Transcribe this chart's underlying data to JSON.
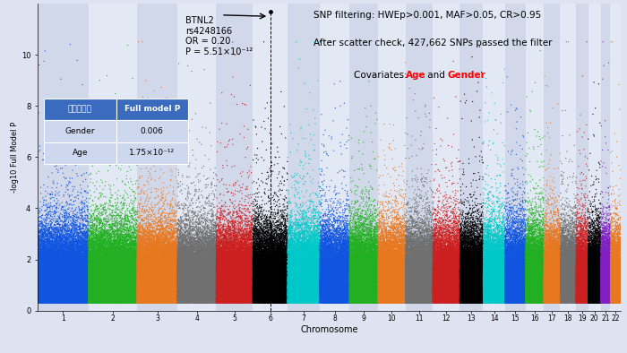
{
  "xlabel": "Chromosome",
  "ylabel": "-log10 Full Model P",
  "ylim": [
    0,
    12
  ],
  "yticks": [
    0,
    2,
    4,
    6,
    8,
    10
  ],
  "snp_filter_text": "SNP filtering: HWEp>0.001, MAF>0.05, CR>0.95",
  "after_filter_text": "After scatter check, 427,662 SNPs passed the filter",
  "table_header1": "単回帰解析",
  "table_header2": "Full model P",
  "table_row1_label": "Gender",
  "table_row1_val": "0.006",
  "table_row2_label": "Age",
  "table_row2_val": "1.75×10⁻¹²",
  "annotation_gene": "BTNL2",
  "annotation_snp": "rs4248166",
  "annotation_or": "OR = 0.20",
  "annotation_p": "P = 5.51×10⁻¹²",
  "n_snps": 427662,
  "chr_colors": [
    "#1055e0",
    "#22b022",
    "#e87820",
    "#707070",
    "#cc2020",
    "#000000",
    "#00c8c8",
    "#1055e0",
    "#22b022",
    "#e87820",
    "#707070",
    "#cc2020",
    "#000000",
    "#00c8c8",
    "#1055e0",
    "#22b022",
    "#e87820",
    "#707070",
    "#cc2020",
    "#000000",
    "#8020c0",
    "#e87820"
  ],
  "background_color": "#dde3f0",
  "plot_bg_even": "#d0d8ea",
  "plot_bg_odd": "#e2e8f4",
  "chr_sizes": [
    250,
    240,
    199,
    191,
    181,
    171,
    159,
    146,
    141,
    135,
    135,
    133,
    115,
    107,
    102,
    90,
    81,
    78,
    59,
    63,
    47,
    51
  ]
}
